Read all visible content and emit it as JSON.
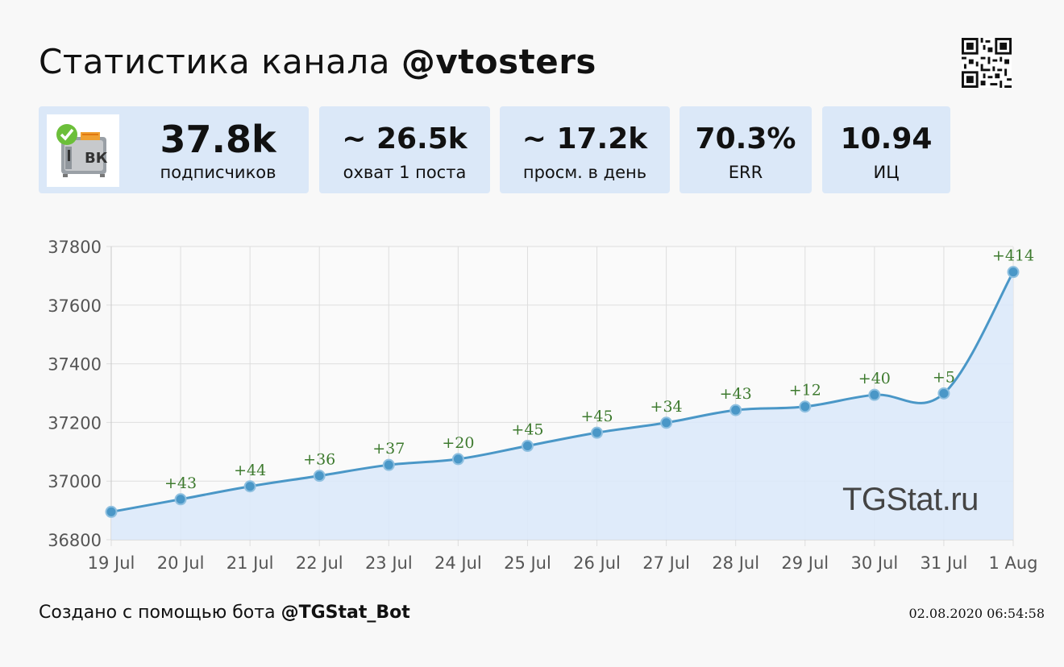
{
  "header": {
    "title_prefix": "Статистика канала ",
    "channel": "@vtosters"
  },
  "cards": [
    {
      "value": "37.8k",
      "label": "подписчиков"
    },
    {
      "value": "~ 26.5k",
      "label": "охват 1 поста"
    },
    {
      "value": "~ 17.2k",
      "label": "просм. в день"
    },
    {
      "value": "70.3%",
      "label": "ERR"
    },
    {
      "value": "10.94",
      "label": "ИЦ"
    }
  ],
  "logo_text": "ВК",
  "colors": {
    "line": "#4a97c7",
    "fill": "#dce9fa",
    "annotation": "#3d7a2e",
    "card": "#dbe8f8"
  },
  "chart_data": {
    "type": "area",
    "categories": [
      "19 Jul",
      "20 Jul",
      "21 Jul",
      "22 Jul",
      "23 Jul",
      "24 Jul",
      "25 Jul",
      "26 Jul",
      "27 Jul",
      "28 Jul",
      "29 Jul",
      "30 Jul",
      "31 Jul",
      "1 Aug"
    ],
    "values": [
      36895,
      36938,
      36982,
      37018,
      37055,
      37075,
      37120,
      37165,
      37199,
      37242,
      37254,
      37294,
      37299,
      37713
    ],
    "annotations": [
      "",
      "+43",
      "+44",
      "+36",
      "+37",
      "+20",
      "+45",
      "+45",
      "+34",
      "+43",
      "+12",
      "+40",
      "+5",
      "+414"
    ],
    "yticks": [
      36800,
      37000,
      37200,
      37400,
      37600,
      37800
    ],
    "ylim": [
      36800,
      37800
    ],
    "grid": true
  },
  "watermark": "TGStat.ru",
  "footer": {
    "prefix": "Создано с помощью бота ",
    "bot": "@TGStat_Bot",
    "datetime": "02.08.2020 06:54:58"
  }
}
